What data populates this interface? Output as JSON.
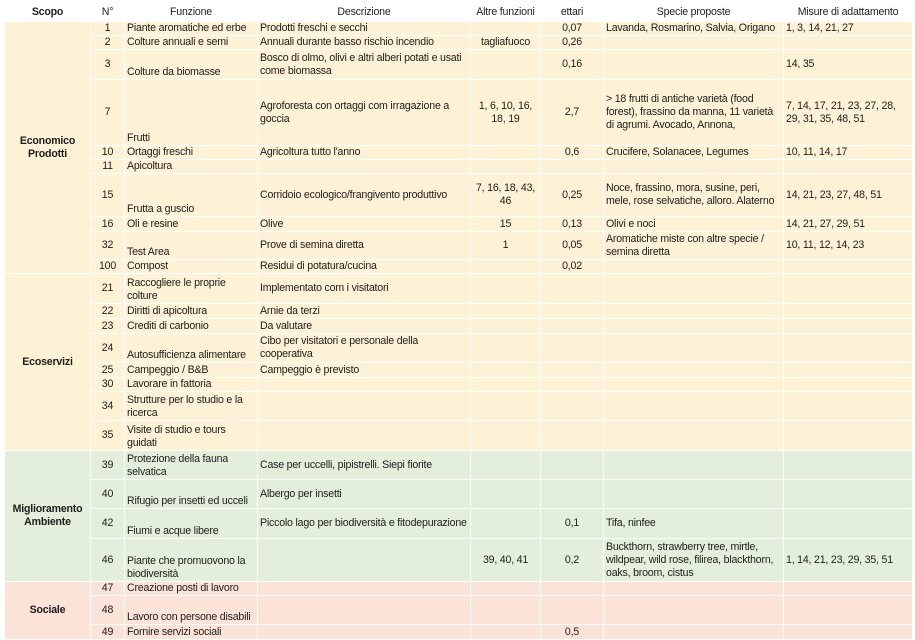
{
  "headers": {
    "scopo": "Scopo",
    "num": "N°",
    "funzione": "Funzione",
    "descrizione": "Descrizione",
    "altre": "Altre funzioni",
    "ettari": "ettari",
    "specie": "Specie proposte",
    "misure": "Misure di adattamento"
  },
  "colors": {
    "economico": "#fdf1d6",
    "ecoservizi": "#fdf1d6",
    "miglioramento": "#e3eedb",
    "sociale": "#fbe3d7",
    "grid": "#ffffff"
  },
  "groups": [
    {
      "scopo": "Economico Prodotti",
      "color_key": "economico",
      "rows": [
        {
          "num": "1",
          "funzione": "Piante aromatiche ed erbe",
          "descrizione": "Prodotti freschi e secchi",
          "altre": "",
          "ettari": "0,07",
          "specie": "Lavanda, Rosmarino, Salvia, Origano",
          "misure": "1, 3, 14, 21, 27"
        },
        {
          "num": "2",
          "funzione": "Colture annuali e semi",
          "descrizione": "Annuali durante basso rischio incendio",
          "altre": "tagliafuoco",
          "ettari": "0,26",
          "specie": "",
          "misure": ""
        },
        {
          "num": "3",
          "funzione": "Colture da biomasse",
          "descrizione": "Bosco di olmo, olivi e altri alberi potati e usati come biomassa",
          "altre": "",
          "ettari": "0,16",
          "specie": "",
          "misure": "14, 35"
        },
        {
          "num": "7",
          "funzione": "Frutti",
          "descrizione": "Agroforesta con ortaggi com irragazione a goccia",
          "altre": "1, 6, 10, 16, 18, 19",
          "ettari": "2,7",
          "specie": "> 18 frutti di antiche varietà (food forest), frassino da manna, 11 varietà di agrumi. Avocado, Annona,",
          "misure": "7, 14, 17, 21, 23, 27, 28, 29, 31, 35, 48, 51"
        },
        {
          "num": "10",
          "funzione": "Ortaggi freschi",
          "descrizione": "Agricoltura tutto l'anno",
          "altre": "",
          "ettari": "0,6",
          "specie": "Crucifere, Solanacee, Legumes",
          "misure": "10, 11, 14, 17"
        },
        {
          "num": "11",
          "funzione": "Apicoltura",
          "descrizione": "",
          "altre": "",
          "ettari": "",
          "specie": "",
          "misure": ""
        },
        {
          "num": "15",
          "funzione": "Frutta a guscio",
          "descrizione": "Corridoio ecologico/frangivento produttivo",
          "altre": "7, 16, 18, 43, 46",
          "ettari": "0,25",
          "specie": "Noce, frassino, mora, susine, peri, mele, rose selvatiche, alloro. Alaterno",
          "misure": "14, 21, 23, 27, 48, 51"
        },
        {
          "num": "16",
          "funzione": "Oli e resine",
          "descrizione": "Olive",
          "altre": "15",
          "ettari": "0,13",
          "specie": "Olivi e noci",
          "misure": "14, 21, 27, 29, 51"
        },
        {
          "num": "32",
          "funzione": "Test Area",
          "descrizione": "Prove di semina diretta",
          "altre": "1",
          "ettari": "0,05",
          "specie": "Aromatiche miste con altre specie / semina diretta",
          "misure": "10, 11, 12, 14, 23"
        },
        {
          "num": "100",
          "funzione": "Compost",
          "descrizione": "Residui di potatura/cucina",
          "altre": "",
          "ettari": "0,02",
          "specie": "",
          "misure": ""
        }
      ]
    },
    {
      "scopo": "Ecoservizi",
      "color_key": "ecoservizi",
      "rows": [
        {
          "num": "21",
          "funzione": "Raccogliere le proprie colture",
          "descrizione": "Implementato com i visitatori",
          "altre": "",
          "ettari": "",
          "specie": "",
          "misure": ""
        },
        {
          "num": "22",
          "funzione": "Diritti di apicoltura",
          "descrizione": "Arnie da terzi",
          "altre": "",
          "ettari": "",
          "specie": "",
          "misure": ""
        },
        {
          "num": "23",
          "funzione": "Crediti di carbonio",
          "descrizione": "Da valutare",
          "altre": "",
          "ettari": "",
          "specie": "",
          "misure": ""
        },
        {
          "num": "24",
          "funzione": "Autosufficienza alimentare",
          "descrizione": "Cibo per visitatori e personale della cooperativa",
          "altre": "",
          "ettari": "",
          "specie": "",
          "misure": ""
        },
        {
          "num": "25",
          "funzione": "Campeggio / B&B",
          "descrizione": "Campeggio è previsto",
          "altre": "",
          "ettari": "",
          "specie": "",
          "misure": ""
        },
        {
          "num": "30",
          "funzione": "Lavorare in fattoria",
          "descrizione": "",
          "altre": "",
          "ettari": "",
          "specie": "",
          "misure": ""
        },
        {
          "num": "34",
          "funzione": "Strutture per lo studio e la ricerca",
          "descrizione": "",
          "altre": "",
          "ettari": "",
          "specie": "",
          "misure": ""
        },
        {
          "num": "35",
          "funzione": "Visite di studio e tours guidati",
          "descrizione": "",
          "altre": "",
          "ettari": "",
          "specie": "",
          "misure": ""
        }
      ]
    },
    {
      "scopo": "Miglioramento Ambiente",
      "color_key": "miglioramento",
      "rows": [
        {
          "num": "39",
          "funzione": "Protezione della fauna selvatica",
          "descrizione": "Case per uccelli, pipistrelli. Siepi fiorite",
          "altre": "",
          "ettari": "",
          "specie": "",
          "misure": ""
        },
        {
          "num": "40",
          "funzione": "Rifugio per insetti ed ucceli",
          "descrizione": "Albergo per insetti",
          "altre": "",
          "ettari": "",
          "specie": "",
          "misure": ""
        },
        {
          "num": "42",
          "funzione": "Fiumi e acque libere",
          "descrizione": "Piccolo lago per biodiversità e fitodepurazione",
          "altre": "",
          "ettari": "0,1",
          "specie": "Tifa, ninfee",
          "misure": ""
        },
        {
          "num": "46",
          "funzione": "Piante che promuovono la biodiversità",
          "descrizione": "",
          "altre": "39, 40, 41",
          "ettari": "0,2",
          "specie": "Buckthorn, strawberry tree, mirtle, wildpear, wild rose, filirea, blackthorn, oaks, broom, cistus",
          "misure": "1, 14, 21, 23, 29, 35, 51"
        }
      ]
    },
    {
      "scopo": "Sociale",
      "color_key": "sociale",
      "rows": [
        {
          "num": "47",
          "funzione": "Creazione posti di lavoro",
          "descrizione": "",
          "altre": "",
          "ettari": "",
          "specie": "",
          "misure": ""
        },
        {
          "num": "48",
          "funzione": "Lavoro con persone disabili",
          "descrizione": "",
          "altre": "",
          "ettari": "",
          "specie": "",
          "misure": ""
        },
        {
          "num": "49",
          "funzione": "Fornire servizi sociali",
          "descrizione": "",
          "altre": "",
          "ettari": "0,5",
          "specie": "",
          "misure": ""
        }
      ]
    }
  ]
}
